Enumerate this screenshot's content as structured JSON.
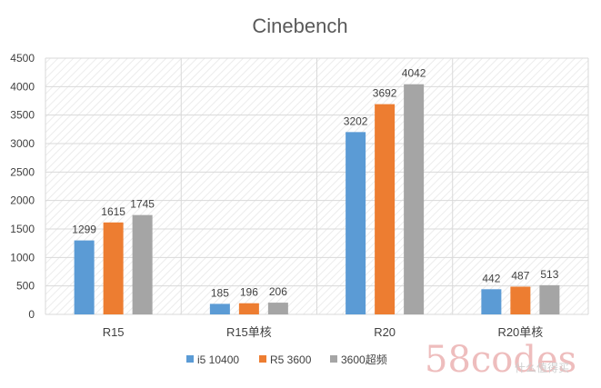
{
  "chart_data": {
    "type": "bar",
    "title": "Cinebench",
    "categories": [
      "R15",
      "R15单核",
      "R20",
      "R20单核"
    ],
    "ylim": [
      0,
      4500
    ],
    "yticks": [
      0,
      500,
      1000,
      1500,
      2000,
      2500,
      3000,
      3500,
      4000,
      4500
    ],
    "grid": true,
    "legend_position": "bottom",
    "series": [
      {
        "name": "i5 10400",
        "color": "#5b9bd5",
        "values": [
          1299,
          185,
          3202,
          442
        ]
      },
      {
        "name": "R5 3600",
        "color": "#ed7d31",
        "values": [
          1615,
          196,
          3692,
          487
        ]
      },
      {
        "name": "3600超频",
        "color": "#a5a5a5",
        "values": [
          1745,
          206,
          4042,
          513
        ]
      }
    ]
  },
  "watermark": {
    "text": "58codes",
    "sub": "什么值得买",
    "color": "#e9a8a8"
  }
}
